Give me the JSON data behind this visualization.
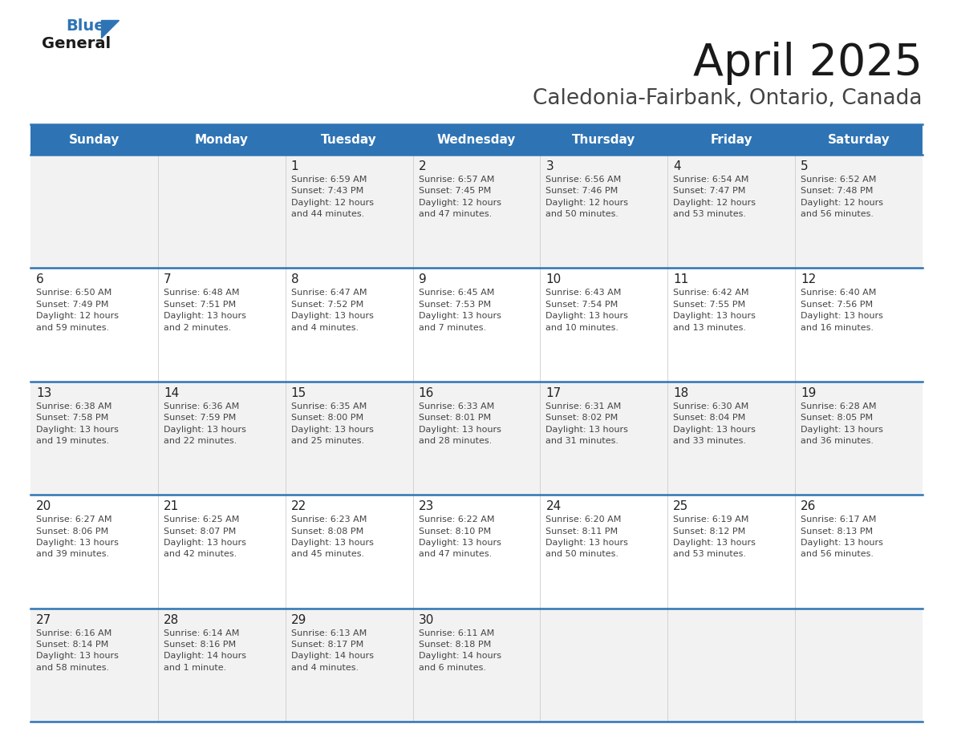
{
  "title": "April 2025",
  "subtitle": "Caledonia-Fairbank, Ontario, Canada",
  "header_bg": "#2E74B5",
  "header_text_color": "#FFFFFF",
  "day_names": [
    "Sunday",
    "Monday",
    "Tuesday",
    "Wednesday",
    "Thursday",
    "Friday",
    "Saturday"
  ],
  "row_bg_odd": "#F2F2F2",
  "row_bg_even": "#FFFFFF",
  "row_border_color": "#2E74B5",
  "day_number_color": "#222222",
  "info_text_color": "#444444",
  "calendar": [
    [
      {
        "day": null,
        "info": ""
      },
      {
        "day": null,
        "info": ""
      },
      {
        "day": 1,
        "info": "Sunrise: 6:59 AM\nSunset: 7:43 PM\nDaylight: 12 hours\nand 44 minutes."
      },
      {
        "day": 2,
        "info": "Sunrise: 6:57 AM\nSunset: 7:45 PM\nDaylight: 12 hours\nand 47 minutes."
      },
      {
        "day": 3,
        "info": "Sunrise: 6:56 AM\nSunset: 7:46 PM\nDaylight: 12 hours\nand 50 minutes."
      },
      {
        "day": 4,
        "info": "Sunrise: 6:54 AM\nSunset: 7:47 PM\nDaylight: 12 hours\nand 53 minutes."
      },
      {
        "day": 5,
        "info": "Sunrise: 6:52 AM\nSunset: 7:48 PM\nDaylight: 12 hours\nand 56 minutes."
      }
    ],
    [
      {
        "day": 6,
        "info": "Sunrise: 6:50 AM\nSunset: 7:49 PM\nDaylight: 12 hours\nand 59 minutes."
      },
      {
        "day": 7,
        "info": "Sunrise: 6:48 AM\nSunset: 7:51 PM\nDaylight: 13 hours\nand 2 minutes."
      },
      {
        "day": 8,
        "info": "Sunrise: 6:47 AM\nSunset: 7:52 PM\nDaylight: 13 hours\nand 4 minutes."
      },
      {
        "day": 9,
        "info": "Sunrise: 6:45 AM\nSunset: 7:53 PM\nDaylight: 13 hours\nand 7 minutes."
      },
      {
        "day": 10,
        "info": "Sunrise: 6:43 AM\nSunset: 7:54 PM\nDaylight: 13 hours\nand 10 minutes."
      },
      {
        "day": 11,
        "info": "Sunrise: 6:42 AM\nSunset: 7:55 PM\nDaylight: 13 hours\nand 13 minutes."
      },
      {
        "day": 12,
        "info": "Sunrise: 6:40 AM\nSunset: 7:56 PM\nDaylight: 13 hours\nand 16 minutes."
      }
    ],
    [
      {
        "day": 13,
        "info": "Sunrise: 6:38 AM\nSunset: 7:58 PM\nDaylight: 13 hours\nand 19 minutes."
      },
      {
        "day": 14,
        "info": "Sunrise: 6:36 AM\nSunset: 7:59 PM\nDaylight: 13 hours\nand 22 minutes."
      },
      {
        "day": 15,
        "info": "Sunrise: 6:35 AM\nSunset: 8:00 PM\nDaylight: 13 hours\nand 25 minutes."
      },
      {
        "day": 16,
        "info": "Sunrise: 6:33 AM\nSunset: 8:01 PM\nDaylight: 13 hours\nand 28 minutes."
      },
      {
        "day": 17,
        "info": "Sunrise: 6:31 AM\nSunset: 8:02 PM\nDaylight: 13 hours\nand 31 minutes."
      },
      {
        "day": 18,
        "info": "Sunrise: 6:30 AM\nSunset: 8:04 PM\nDaylight: 13 hours\nand 33 minutes."
      },
      {
        "day": 19,
        "info": "Sunrise: 6:28 AM\nSunset: 8:05 PM\nDaylight: 13 hours\nand 36 minutes."
      }
    ],
    [
      {
        "day": 20,
        "info": "Sunrise: 6:27 AM\nSunset: 8:06 PM\nDaylight: 13 hours\nand 39 minutes."
      },
      {
        "day": 21,
        "info": "Sunrise: 6:25 AM\nSunset: 8:07 PM\nDaylight: 13 hours\nand 42 minutes."
      },
      {
        "day": 22,
        "info": "Sunrise: 6:23 AM\nSunset: 8:08 PM\nDaylight: 13 hours\nand 45 minutes."
      },
      {
        "day": 23,
        "info": "Sunrise: 6:22 AM\nSunset: 8:10 PM\nDaylight: 13 hours\nand 47 minutes."
      },
      {
        "day": 24,
        "info": "Sunrise: 6:20 AM\nSunset: 8:11 PM\nDaylight: 13 hours\nand 50 minutes."
      },
      {
        "day": 25,
        "info": "Sunrise: 6:19 AM\nSunset: 8:12 PM\nDaylight: 13 hours\nand 53 minutes."
      },
      {
        "day": 26,
        "info": "Sunrise: 6:17 AM\nSunset: 8:13 PM\nDaylight: 13 hours\nand 56 minutes."
      }
    ],
    [
      {
        "day": 27,
        "info": "Sunrise: 6:16 AM\nSunset: 8:14 PM\nDaylight: 13 hours\nand 58 minutes."
      },
      {
        "day": 28,
        "info": "Sunrise: 6:14 AM\nSunset: 8:16 PM\nDaylight: 14 hours\nand 1 minute."
      },
      {
        "day": 29,
        "info": "Sunrise: 6:13 AM\nSunset: 8:17 PM\nDaylight: 14 hours\nand 4 minutes."
      },
      {
        "day": 30,
        "info": "Sunrise: 6:11 AM\nSunset: 8:18 PM\nDaylight: 14 hours\nand 6 minutes."
      },
      {
        "day": null,
        "info": ""
      },
      {
        "day": null,
        "info": ""
      },
      {
        "day": null,
        "info": ""
      }
    ]
  ],
  "logo_text_general": "General",
  "logo_text_blue": "Blue",
  "logo_triangle_color": "#2E74B5",
  "fig_width": 11.88,
  "fig_height": 9.18,
  "dpi": 100
}
